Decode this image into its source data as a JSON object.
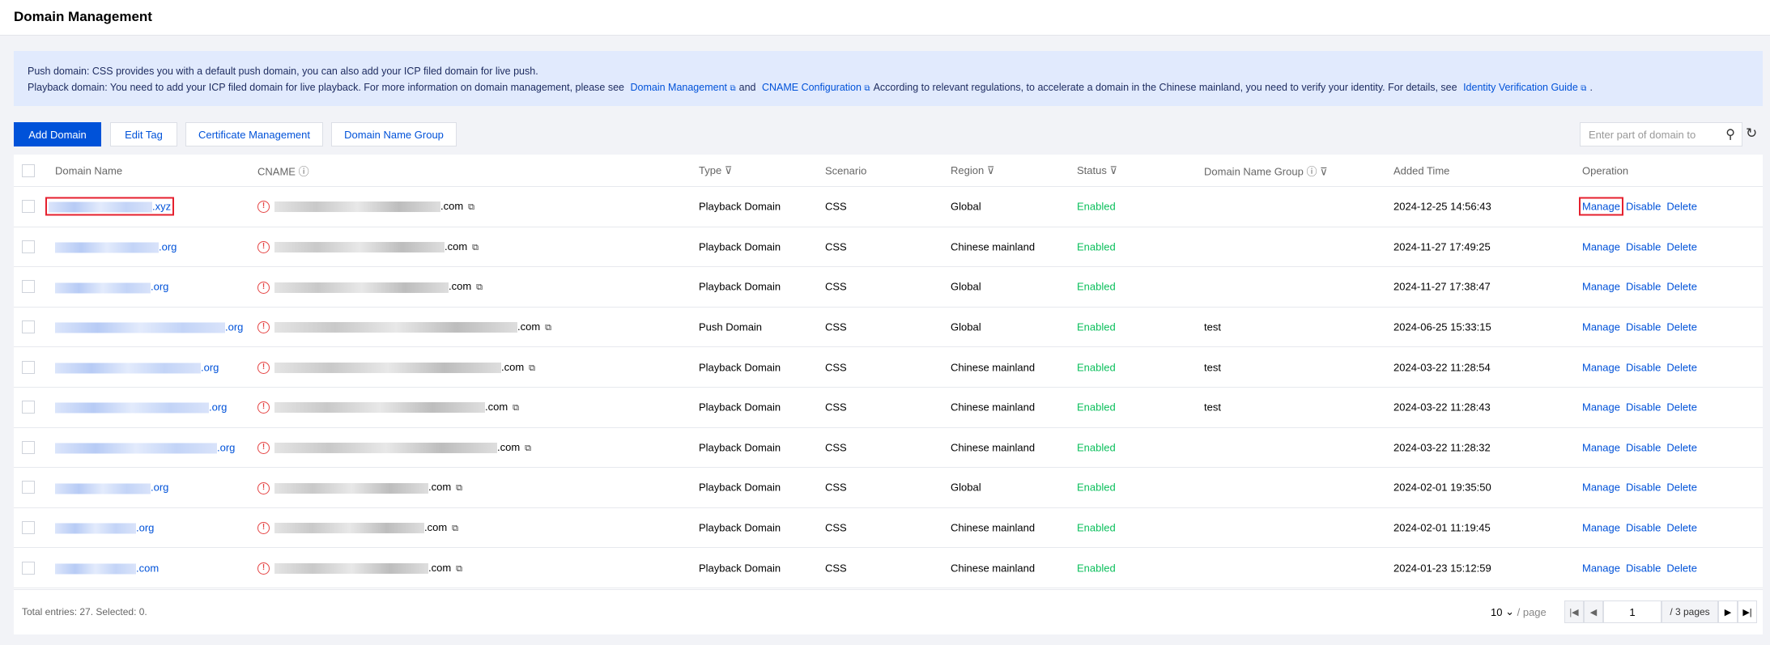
{
  "header": {
    "title": "Domain Management"
  },
  "banner": {
    "line1": "Push domain: CSS provides you with a default push domain, you can also add your ICP filed domain for live push.",
    "line2_a": "Playback domain: You need to add your ICP filed domain for live playback. For more information on domain management, please see",
    "link1": "Domain Management",
    "and": "and",
    "link2": "CNAME Configuration",
    "line2_b": "According to relevant regulations, to accelerate a domain in the Chinese mainland, you need to verify your identity. For details, see",
    "link3": "Identity Verification Guide",
    "period": "."
  },
  "toolbar": {
    "add": "Add Domain",
    "edit_tag": "Edit Tag",
    "cert": "Certificate Management",
    "group": "Domain Name Group",
    "search_placeholder": "Enter part of domain to"
  },
  "columns": [
    "Domain Name",
    "CNAME",
    "Type",
    "Scenario",
    "Region",
    "Status",
    "Domain Name Group",
    "Added Time",
    "Operation"
  ],
  "rows": [
    {
      "domain": ".xyz",
      "cname": ".com",
      "type": "Playback Domain",
      "scenario": "CSS",
      "region": "Global",
      "status": "Enabled",
      "group": "",
      "added": "2024-12-25 14:56:43"
    },
    {
      "domain": ".org",
      "cname": ".com",
      "type": "Playback Domain",
      "scenario": "CSS",
      "region": "Chinese mainland",
      "status": "Enabled",
      "group": "",
      "added": "2024-11-27 17:49:25"
    },
    {
      "domain": ".org",
      "cname": ".com",
      "type": "Playback Domain",
      "scenario": "CSS",
      "region": "Global",
      "status": "Enabled",
      "group": "",
      "added": "2024-11-27 17:38:47"
    },
    {
      "domain": ".org",
      "cname": ".com",
      "type": "Push Domain",
      "scenario": "CSS",
      "region": "Global",
      "status": "Enabled",
      "group": "test",
      "added": "2024-06-25 15:33:15"
    },
    {
      "domain": ".org",
      "cname": ".com",
      "type": "Playback Domain",
      "scenario": "CSS",
      "region": "Chinese mainland",
      "status": "Enabled",
      "group": "test",
      "added": "2024-03-22 11:28:54"
    },
    {
      "domain": ".org",
      "cname": ".com",
      "type": "Playback Domain",
      "scenario": "CSS",
      "region": "Chinese mainland",
      "status": "Enabled",
      "group": "test",
      "added": "2024-03-22 11:28:43"
    },
    {
      "domain": ".org",
      "cname": ".com",
      "type": "Playback Domain",
      "scenario": "CSS",
      "region": "Chinese mainland",
      "status": "Enabled",
      "group": "",
      "added": "2024-03-22 11:28:32"
    },
    {
      "domain": ".org",
      "cname": ".com",
      "type": "Playback Domain",
      "scenario": "CSS",
      "region": "Global",
      "status": "Enabled",
      "group": "",
      "added": "2024-02-01 19:35:50"
    },
    {
      "domain": ".org",
      "cname": ".com",
      "type": "Playback Domain",
      "scenario": "CSS",
      "region": "Chinese mainland",
      "status": "Enabled",
      "group": "",
      "added": "2024-02-01 11:19:45"
    },
    {
      "domain": ".com",
      "cname": ".com",
      "type": "Playback Domain",
      "scenario": "CSS",
      "region": "Chinese mainland",
      "status": "Enabled",
      "group": "",
      "added": "2024-01-23 15:12:59"
    }
  ],
  "ops": {
    "manage": "Manage",
    "disable": "Disable",
    "delete": "Delete"
  },
  "footer": {
    "total": "Total entries: 27. Selected: 0.",
    "page_size": "10",
    "per_page": "/ page",
    "current_page": "1",
    "total_pages": "/ 3 pages"
  },
  "colors": {
    "primary": "#0052d9",
    "enabled": "#0abf5b",
    "warning": "#e54545",
    "highlight": "#e5202e"
  }
}
